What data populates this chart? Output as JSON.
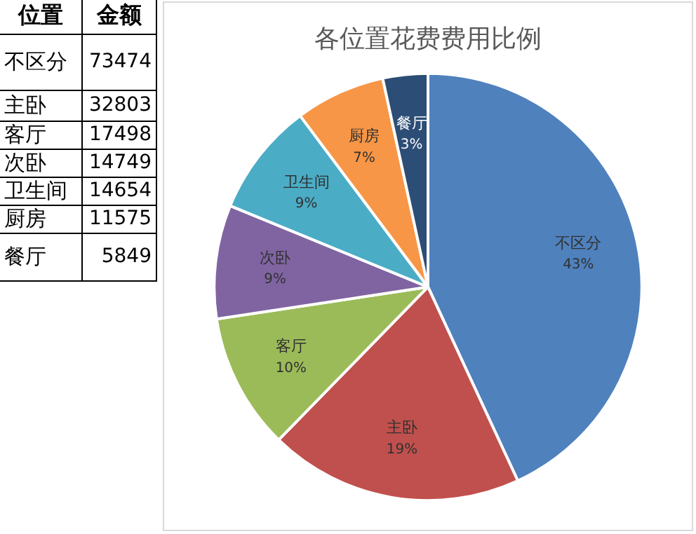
{
  "chart_data": [
    {
      "type": "other",
      "annotations": [
        "位置",
        "金额"
      ],
      "categories": [
        "不区分",
        "主卧",
        "客厅",
        "次卧",
        "卫生间",
        "厨房",
        "餐厅"
      ],
      "values": [
        73474,
        32803,
        17498,
        14749,
        14654,
        11575,
        5849
      ],
      "data_labels": true
    },
    {
      "type": "pie",
      "title": "各位置花费费用比例",
      "categories": [
        "不区分",
        "主卧",
        "客厅",
        "次卧",
        "卫生间",
        "厨房",
        "餐厅"
      ],
      "values": [
        43.1,
        19.2,
        10.3,
        8.6,
        8.6,
        6.8,
        3.4
      ],
      "value_labels": [
        "43%",
        "19%",
        "10%",
        "9%",
        "9%",
        "7%",
        "3%"
      ],
      "colors": [
        "#4f81bd",
        "#c0504d",
        "#9bbb59",
        "#8064a2",
        "#4bacc6",
        "#f79646",
        "#2c4d75"
      ],
      "legend": false
    }
  ]
}
